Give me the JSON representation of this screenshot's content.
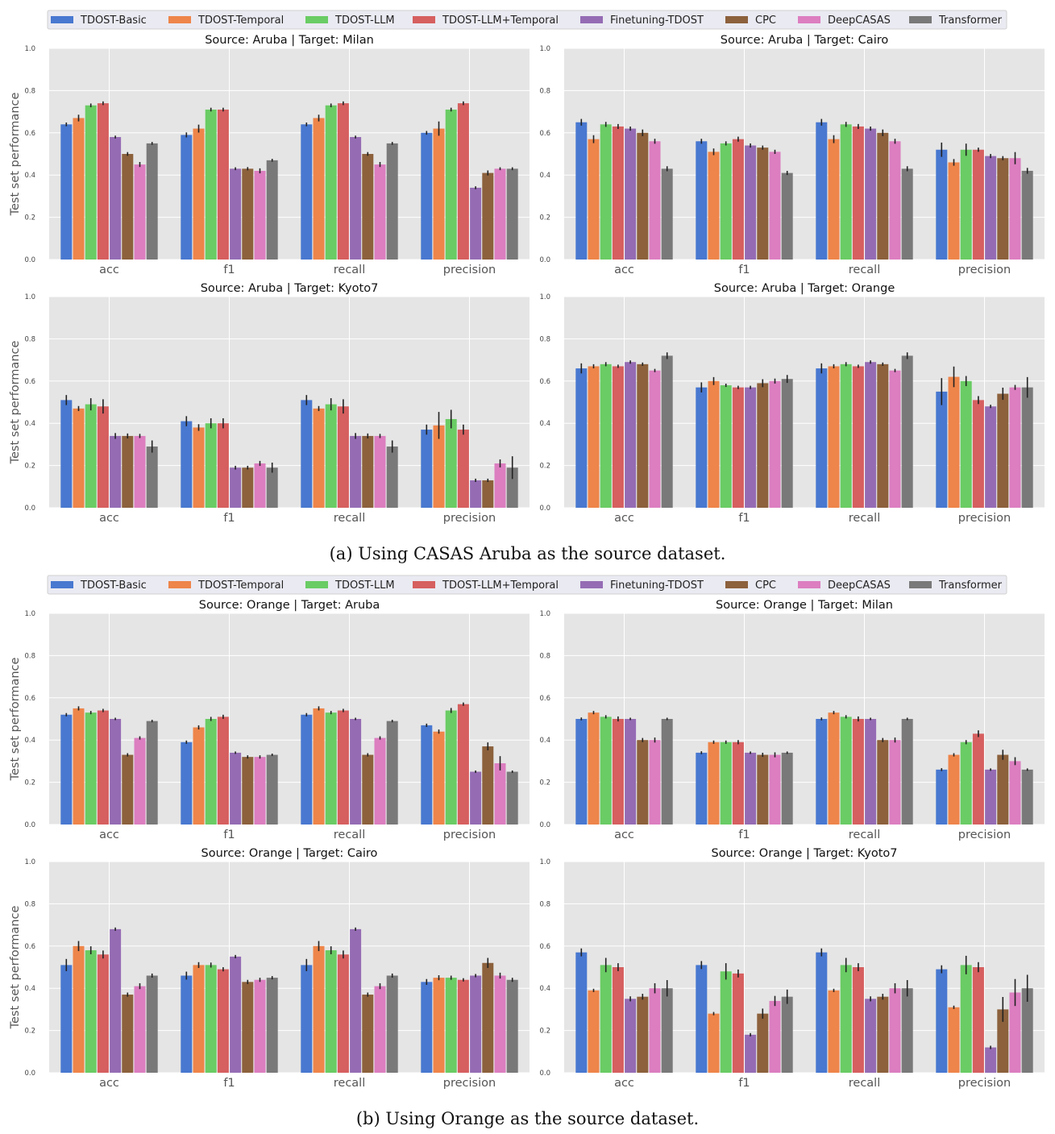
{
  "series": [
    {
      "name": "TDOST-Basic",
      "color": "#4878d0"
    },
    {
      "name": "TDOST-Temporal",
      "color": "#ee854a"
    },
    {
      "name": "TDOST-LLM",
      "color": "#6acc64"
    },
    {
      "name": "TDOST-LLM+Temporal",
      "color": "#d65f5f"
    },
    {
      "name": "Finetuning-TDOST",
      "color": "#956cb4"
    },
    {
      "name": "CPC",
      "color": "#8c613c"
    },
    {
      "name": "DeepCASAS",
      "color": "#dc7ec0"
    },
    {
      "name": "Transformer",
      "color": "#797979"
    }
  ],
  "captions": {
    "a": "(a) Using CASAS Aruba as the source dataset.",
    "b": "(b) Using Orange as the source dataset."
  },
  "chart_data": [
    {
      "type": "bar",
      "title": "Source: Aruba | Target: Milan",
      "categories": [
        "acc",
        "f1",
        "recall",
        "precision"
      ],
      "ylabel": "Test set performance",
      "ylim": [
        0,
        1.0
      ],
      "values": [
        [
          0.64,
          0.67,
          0.73,
          0.74,
          0.58,
          0.5,
          0.45,
          0.55
        ],
        [
          0.59,
          0.62,
          0.71,
          0.71,
          0.43,
          0.43,
          0.42,
          0.47
        ],
        [
          0.64,
          0.67,
          0.73,
          0.74,
          0.58,
          0.5,
          0.45,
          0.55
        ],
        [
          0.6,
          0.62,
          0.71,
          0.74,
          0.34,
          0.41,
          0.43,
          0.43
        ]
      ],
      "errors": [
        [
          0.005,
          0.012,
          0.005,
          0.005,
          0.003,
          0.005,
          0.008,
          0.003
        ],
        [
          0.008,
          0.015,
          0.005,
          0.005,
          0.003,
          0.004,
          0.008,
          0.003
        ],
        [
          0.005,
          0.012,
          0.005,
          0.005,
          0.003,
          0.005,
          0.008,
          0.003
        ],
        [
          0.005,
          0.03,
          0.005,
          0.005,
          0.003,
          0.008,
          0.003,
          0.003
        ]
      ]
    },
    {
      "type": "bar",
      "title": "Source: Aruba | Target: Cairo",
      "categories": [
        "acc",
        "f1",
        "recall",
        "precision"
      ],
      "ylabel": "",
      "ylim": [
        0,
        1.0
      ],
      "values": [
        [
          0.65,
          0.57,
          0.64,
          0.63,
          0.62,
          0.6,
          0.56,
          0.43
        ],
        [
          0.56,
          0.51,
          0.55,
          0.57,
          0.54,
          0.53,
          0.51,
          0.41
        ],
        [
          0.65,
          0.57,
          0.64,
          0.63,
          0.62,
          0.6,
          0.56,
          0.43
        ],
        [
          0.52,
          0.46,
          0.52,
          0.52,
          0.49,
          0.48,
          0.48,
          0.42
        ]
      ],
      "errors": [
        [
          0.012,
          0.015,
          0.008,
          0.008,
          0.006,
          0.012,
          0.008,
          0.008
        ],
        [
          0.008,
          0.012,
          0.006,
          0.008,
          0.006,
          0.006,
          0.006,
          0.006
        ],
        [
          0.012,
          0.015,
          0.008,
          0.008,
          0.006,
          0.012,
          0.008,
          0.008
        ],
        [
          0.03,
          0.012,
          0.025,
          0.006,
          0.006,
          0.006,
          0.025,
          0.01
        ]
      ]
    },
    {
      "type": "bar",
      "title": "Source: Aruba | Target: Kyoto7",
      "categories": [
        "acc",
        "f1",
        "recall",
        "precision"
      ],
      "ylabel": "Test set performance",
      "ylim": [
        0,
        1.0
      ],
      "values": [
        [
          0.51,
          0.47,
          0.49,
          0.48,
          0.34,
          0.34,
          0.34,
          0.29
        ],
        [
          0.41,
          0.38,
          0.4,
          0.4,
          0.19,
          0.19,
          0.21,
          0.19
        ],
        [
          0.51,
          0.47,
          0.49,
          0.48,
          0.34,
          0.34,
          0.34,
          0.29
        ],
        [
          0.37,
          0.39,
          0.42,
          0.37,
          0.13,
          0.13,
          0.21,
          0.19
        ]
      ],
      "errors": [
        [
          0.02,
          0.008,
          0.025,
          0.03,
          0.01,
          0.008,
          0.006,
          0.025
        ],
        [
          0.02,
          0.012,
          0.02,
          0.02,
          0.005,
          0.005,
          0.008,
          0.02
        ],
        [
          0.02,
          0.008,
          0.025,
          0.03,
          0.01,
          0.008,
          0.006,
          0.025
        ],
        [
          0.02,
          0.06,
          0.04,
          0.02,
          0.004,
          0.004,
          0.015,
          0.05
        ]
      ]
    },
    {
      "type": "bar",
      "title": "Source: Aruba | Target: Orange",
      "categories": [
        "acc",
        "f1",
        "recall",
        "precision"
      ],
      "ylabel": "",
      "ylim": [
        0,
        1.0
      ],
      "values": [
        [
          0.66,
          0.67,
          0.68,
          0.67,
          0.69,
          0.68,
          0.65,
          0.72
        ],
        [
          0.57,
          0.6,
          0.58,
          0.57,
          0.57,
          0.59,
          0.6,
          0.61
        ],
        [
          0.66,
          0.67,
          0.68,
          0.67,
          0.69,
          0.68,
          0.65,
          0.72
        ],
        [
          0.55,
          0.62,
          0.6,
          0.51,
          0.48,
          0.54,
          0.57,
          0.57
        ]
      ],
      "errors": [
        [
          0.02,
          0.006,
          0.006,
          0.004,
          0.004,
          0.004,
          0.004,
          0.012
        ],
        [
          0.02,
          0.015,
          0.004,
          0.004,
          0.004,
          0.015,
          0.008,
          0.015
        ],
        [
          0.02,
          0.006,
          0.006,
          0.004,
          0.004,
          0.004,
          0.004,
          0.012
        ],
        [
          0.06,
          0.045,
          0.02,
          0.015,
          0.004,
          0.025,
          0.008,
          0.045
        ]
      ]
    },
    {
      "type": "bar",
      "title": "Source: Orange | Target: Aruba",
      "categories": [
        "acc",
        "f1",
        "recall",
        "precision"
      ],
      "ylabel": "Test set performance",
      "ylim": [
        0,
        1.0
      ],
      "values": [
        [
          0.52,
          0.55,
          0.53,
          0.54,
          0.5,
          0.33,
          0.41,
          0.49
        ],
        [
          0.39,
          0.46,
          0.5,
          0.51,
          0.34,
          0.32,
          0.32,
          0.33
        ],
        [
          0.52,
          0.55,
          0.53,
          0.54,
          0.5,
          0.33,
          0.41,
          0.49
        ],
        [
          0.47,
          0.44,
          0.54,
          0.57,
          0.25,
          0.37,
          0.29,
          0.25
        ]
      ],
      "errors": [
        [
          0.004,
          0.006,
          0.004,
          0.004,
          0.002,
          0.004,
          0.004,
          0.002
        ],
        [
          0.004,
          0.006,
          0.006,
          0.006,
          0.002,
          0.004,
          0.004,
          0.002
        ],
        [
          0.004,
          0.006,
          0.004,
          0.004,
          0.002,
          0.004,
          0.004,
          0.002
        ],
        [
          0.004,
          0.006,
          0.008,
          0.004,
          0.002,
          0.015,
          0.03,
          0.002
        ]
      ]
    },
    {
      "type": "bar",
      "title": "Source: Orange | Target: Milan",
      "categories": [
        "acc",
        "f1",
        "recall",
        "precision"
      ],
      "ylabel": "",
      "ylim": [
        0,
        1.0
      ],
      "values": [
        [
          0.5,
          0.53,
          0.51,
          0.5,
          0.5,
          0.4,
          0.4,
          0.5
        ],
        [
          0.34,
          0.39,
          0.39,
          0.39,
          0.34,
          0.33,
          0.33,
          0.34
        ],
        [
          0.5,
          0.53,
          0.51,
          0.5,
          0.5,
          0.4,
          0.4,
          0.5
        ],
        [
          0.26,
          0.33,
          0.39,
          0.43,
          0.26,
          0.33,
          0.3,
          0.26
        ]
      ],
      "errors": [
        [
          0.003,
          0.004,
          0.004,
          0.008,
          0.002,
          0.006,
          0.008,
          0.002
        ],
        [
          0.003,
          0.004,
          0.004,
          0.006,
          0.002,
          0.006,
          0.008,
          0.002
        ],
        [
          0.003,
          0.004,
          0.004,
          0.008,
          0.002,
          0.006,
          0.008,
          0.002
        ],
        [
          0.003,
          0.004,
          0.006,
          0.012,
          0.002,
          0.02,
          0.015,
          0.002
        ]
      ]
    },
    {
      "type": "bar",
      "title": "Source: Orange | Target: Cairo",
      "categories": [
        "acc",
        "f1",
        "recall",
        "precision"
      ],
      "ylabel": "Test set performance",
      "ylim": [
        0,
        1.0
      ],
      "values": [
        [
          0.51,
          0.6,
          0.58,
          0.56,
          0.68,
          0.37,
          0.41,
          0.46
        ],
        [
          0.46,
          0.51,
          0.51,
          0.49,
          0.55,
          0.43,
          0.44,
          0.45
        ],
        [
          0.51,
          0.6,
          0.58,
          0.56,
          0.68,
          0.37,
          0.41,
          0.46
        ],
        [
          0.43,
          0.45,
          0.45,
          0.44,
          0.46,
          0.52,
          0.46,
          0.44
        ]
      ],
      "errors": [
        [
          0.025,
          0.02,
          0.015,
          0.015,
          0.004,
          0.006,
          0.01,
          0.006
        ],
        [
          0.015,
          0.01,
          0.008,
          0.006,
          0.004,
          0.006,
          0.006,
          0.004
        ],
        [
          0.025,
          0.02,
          0.015,
          0.015,
          0.004,
          0.006,
          0.01,
          0.006
        ],
        [
          0.01,
          0.008,
          0.006,
          0.004,
          0.004,
          0.02,
          0.01,
          0.006
        ]
      ]
    },
    {
      "type": "bar",
      "title": "Source: Orange | Target: Kyoto7",
      "categories": [
        "acc",
        "f1",
        "recall",
        "precision"
      ],
      "ylabel": "",
      "ylim": [
        0,
        1.0
      ],
      "values": [
        [
          0.57,
          0.39,
          0.51,
          0.5,
          0.35,
          0.36,
          0.4,
          0.4
        ],
        [
          0.51,
          0.28,
          0.48,
          0.47,
          0.18,
          0.28,
          0.34,
          0.36
        ],
        [
          0.57,
          0.39,
          0.51,
          0.5,
          0.35,
          0.36,
          0.4,
          0.4
        ],
        [
          0.49,
          0.31,
          0.51,
          0.5,
          0.12,
          0.3,
          0.38,
          0.4
        ]
      ],
      "errors": [
        [
          0.015,
          0.004,
          0.03,
          0.015,
          0.008,
          0.01,
          0.02,
          0.035
        ],
        [
          0.015,
          0.004,
          0.035,
          0.015,
          0.004,
          0.02,
          0.02,
          0.03
        ],
        [
          0.015,
          0.004,
          0.03,
          0.015,
          0.008,
          0.01,
          0.02,
          0.035
        ],
        [
          0.015,
          0.004,
          0.04,
          0.02,
          0.004,
          0.055,
          0.06,
          0.06
        ]
      ]
    }
  ]
}
